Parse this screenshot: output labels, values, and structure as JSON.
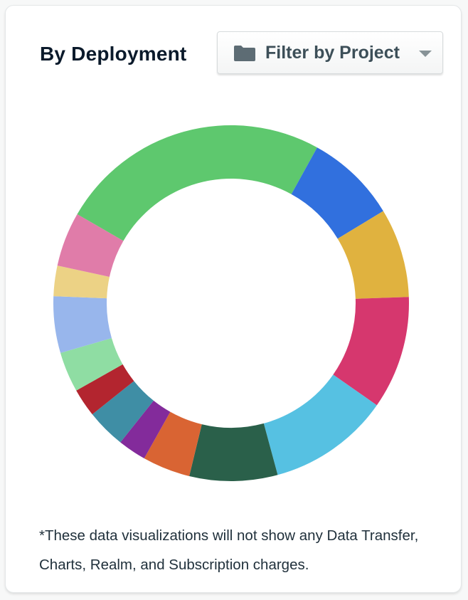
{
  "header": {
    "title": "By Deployment",
    "filter_label": "Filter by Project",
    "folder_icon": "folder-icon",
    "caret_icon": "caret-down-icon"
  },
  "chart_data": {
    "type": "pie",
    "donut": true,
    "slices": [
      {
        "value": 25.0,
        "color": "#5ec86e"
      },
      {
        "value": 8.4,
        "color": "#3170de"
      },
      {
        "value": 8.2,
        "color": "#e0b23f"
      },
      {
        "value": 10.4,
        "color": "#d6376e"
      },
      {
        "value": 11.2,
        "color": "#56c1e2"
      },
      {
        "value": 8.1,
        "color": "#2a604a"
      },
      {
        "value": 4.4,
        "color": "#d96433"
      },
      {
        "value": 2.6,
        "color": "#832b9b"
      },
      {
        "value": 3.6,
        "color": "#3f8ea5"
      },
      {
        "value": 2.6,
        "color": "#b3252f"
      },
      {
        "value": 3.7,
        "color": "#8fdda3"
      },
      {
        "value": 5.2,
        "color": "#98b6ec"
      },
      {
        "value": 2.8,
        "color": "#ecd285"
      },
      {
        "value": 5.0,
        "color": "#e07ca9"
      }
    ],
    "legend": "none"
  },
  "footnote": "*These data visualizations will not show any Data Transfer, Charts, Realm, and Subscription charges."
}
